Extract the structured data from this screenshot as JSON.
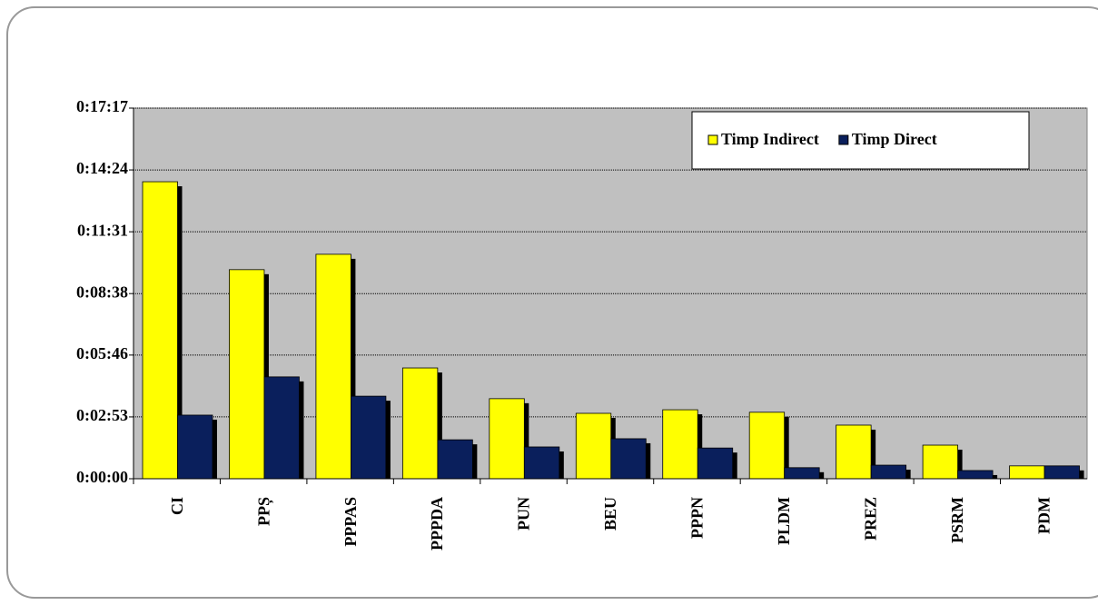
{
  "chart_data": {
    "type": "bar",
    "categories": [
      "CI",
      "PPȘ",
      "PPPAS",
      "PPPDA",
      "PUN",
      "BEU",
      "PPPN",
      "PLDM",
      "PREZ",
      "PSRM",
      "PDM"
    ],
    "series": [
      {
        "name": "Timp Indirect",
        "color": "#ffff00",
        "values": [
          831,
          585,
          628,
          310,
          224,
          183,
          193,
          186,
          150,
          94,
          36
        ]
      },
      {
        "name": "Timp Direct",
        "color": "#0a1f5c",
        "values": [
          178,
          285,
          231,
          109,
          89,
          112,
          86,
          31,
          38,
          23,
          36
        ]
      }
    ],
    "ylim": [
      0,
      1037
    ],
    "yticks": [
      {
        "value": 0,
        "label": "0:00:00"
      },
      {
        "value": 173,
        "label": "0:02:53"
      },
      {
        "value": 346,
        "label": "0:05:46"
      },
      {
        "value": 518,
        "label": "0:08:38"
      },
      {
        "value": 691,
        "label": "0:11:31"
      },
      {
        "value": 864,
        "label": "0:14:24"
      },
      {
        "value": 1037,
        "label": "0:17:17"
      }
    ],
    "grid": true,
    "legend": "upper right",
    "plot_background": "#c0c0c0"
  }
}
